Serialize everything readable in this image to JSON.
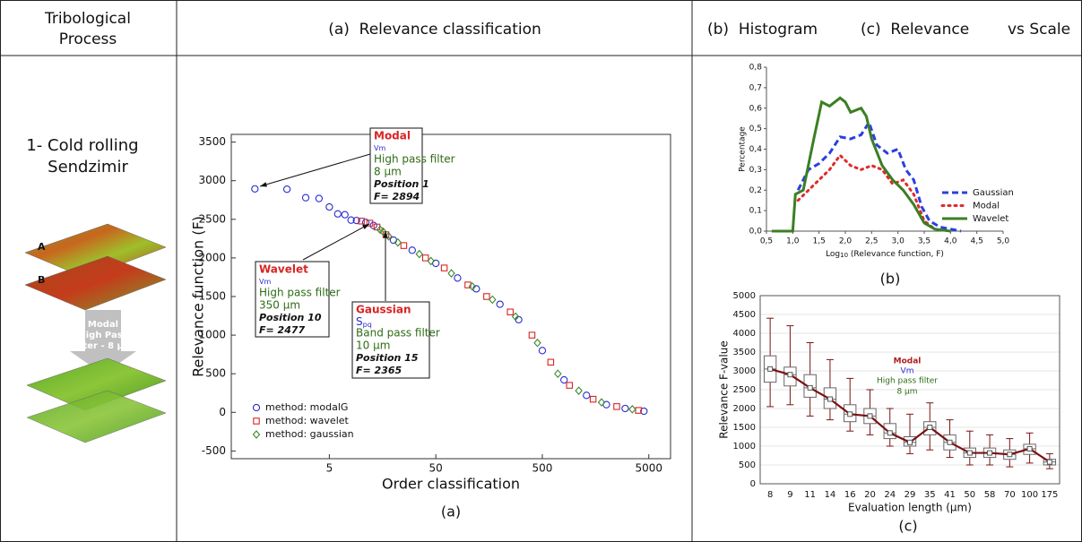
{
  "table": {
    "header": {
      "col1": [
        "Tribological",
        "Process"
      ],
      "col2": "(a)  Relevance classification",
      "col3": [
        "(b)  Histogram",
        "(c)  Relevance",
        "vs Scale"
      ]
    },
    "row_label": [
      "1- Cold rolling",
      "Sendzimir"
    ],
    "image": {
      "labels": [
        "A",
        "B"
      ],
      "arrow_text": [
        "Modal",
        "High Pass",
        "filter - 8 µm"
      ]
    }
  },
  "chart_data": [
    {
      "type": "scatter",
      "xscale": "log",
      "xlabel": "Order classification",
      "ylabel": "Relevance function (F)",
      "caption": "(a)",
      "xlim": [
        0.6,
        8000
      ],
      "ylim": [
        -600,
        3600
      ],
      "xticks": [
        5,
        50,
        500,
        5000
      ],
      "yticks": [
        -500,
        0,
        500,
        1000,
        1500,
        2000,
        2500,
        3000,
        3500
      ],
      "legend": "lower left",
      "series": [
        {
          "name": "method: modalG",
          "color": "#2b2bd0",
          "marker": "circle",
          "x": [
            1,
            2,
            3,
            4,
            5,
            6,
            7,
            8,
            9,
            11,
            13,
            20,
            30,
            50,
            80,
            120,
            200,
            300,
            500,
            800,
            1300,
            2000,
            3000,
            4500
          ],
          "values": [
            2894,
            2890,
            2780,
            2770,
            2660,
            2570,
            2560,
            2490,
            2485,
            2460,
            2420,
            2230,
            2100,
            1930,
            1740,
            1600,
            1400,
            1200,
            800,
            420,
            220,
            100,
            50,
            15
          ]
        },
        {
          "name": "method: wavelet",
          "color": "#d82424",
          "marker": "square",
          "x": [
            10,
            12,
            14,
            17,
            25,
            40,
            60,
            100,
            150,
            250,
            400,
            600,
            900,
            1500,
            2500,
            4000
          ],
          "values": [
            2477,
            2450,
            2400,
            2300,
            2160,
            2000,
            1870,
            1650,
            1500,
            1300,
            1000,
            650,
            350,
            170,
            75,
            25
          ]
        },
        {
          "name": "method: gaussian",
          "color": "#3a8a2a",
          "marker": "diamond",
          "x": [
            15,
            16,
            18,
            22,
            35,
            45,
            70,
            110,
            170,
            280,
            450,
            700,
            1100,
            1800,
            3500
          ],
          "values": [
            2365,
            2340,
            2280,
            2200,
            2050,
            1960,
            1800,
            1630,
            1460,
            1240,
            900,
            500,
            280,
            130,
            40
          ]
        }
      ],
      "annotations": [
        {
          "title": "Modal",
          "method": "Vm",
          "filter": "High pass filter",
          "size": "8 µm",
          "position": "Position 1",
          "f": "F= 2894"
        },
        {
          "title": "Wavelet",
          "method": "Vm",
          "filter": "High pass filter",
          "size": "350 µm",
          "position": "Position 10",
          "f": "F= 2477"
        },
        {
          "title": "Gaussian",
          "method": "S",
          "method_sub": "pq",
          "filter": "Band pass filter",
          "size": "10 µm",
          "position": "Position 15",
          "f": "F= 2365"
        }
      ]
    },
    {
      "type": "line",
      "xlabel": "Log",
      "xlabel_sub": "10",
      "xlabel_rest": " (Relevance function, F)",
      "ylabel": "Percentage",
      "caption": "(b)",
      "xlim": [
        0.5,
        5.0
      ],
      "ylim": [
        0,
        0.8
      ],
      "xticks": [
        {
          "value": 0.5,
          "label": "0,5"
        },
        {
          "value": 1.0,
          "label": "1,0"
        },
        {
          "value": 1.5,
          "label": "1,5"
        },
        {
          "value": 2.0,
          "label": "2,0"
        },
        {
          "value": 2.5,
          "label": "2,5"
        },
        {
          "value": 3.0,
          "label": "3,0"
        },
        {
          "value": 3.5,
          "label": "3,5"
        },
        {
          "value": 4.0,
          "label": "4,0"
        },
        {
          "value": 4.5,
          "label": "4,5"
        },
        {
          "value": 5.0,
          "label": "5,0"
        }
      ],
      "yticks": [
        {
          "value": 0,
          "label": "0,0"
        },
        {
          "value": 0.1,
          "label": "0,1"
        },
        {
          "value": 0.2,
          "label": "0,2"
        },
        {
          "value": 0.3,
          "label": "0,3"
        },
        {
          "value": 0.4,
          "label": "0,4"
        },
        {
          "value": 0.5,
          "label": "0,5"
        },
        {
          "value": 0.6,
          "label": "0,6"
        },
        {
          "value": 0.7,
          "label": "0,7"
        },
        {
          "value": 0.8,
          "label": "0,8"
        }
      ],
      "legend": "right",
      "series": [
        {
          "name": "Gaussian",
          "color": "#2b3fe0",
          "style": "dashed",
          "x": [
            1.1,
            1.3,
            1.5,
            1.7,
            1.9,
            2.1,
            2.3,
            2.45,
            2.6,
            2.8,
            3.0,
            3.15,
            3.3,
            3.45,
            3.6,
            3.8,
            4.0,
            4.2
          ],
          "values": [
            0.2,
            0.3,
            0.33,
            0.38,
            0.46,
            0.45,
            0.47,
            0.53,
            0.42,
            0.38,
            0.4,
            0.3,
            0.25,
            0.12,
            0.05,
            0.02,
            0.01,
            0
          ]
        },
        {
          "name": "Modal",
          "color": "#e02a2a",
          "style": "dotted",
          "x": [
            1.1,
            1.3,
            1.5,
            1.7,
            1.9,
            2.1,
            2.3,
            2.5,
            2.7,
            2.9,
            3.1,
            3.3,
            3.5,
            3.7
          ],
          "values": [
            0.15,
            0.2,
            0.25,
            0.3,
            0.37,
            0.32,
            0.3,
            0.32,
            0.3,
            0.23,
            0.25,
            0.18,
            0.05,
            0.01
          ]
        },
        {
          "name": "Wavelet",
          "color": "#3b7f24",
          "style": "solid",
          "x": [
            0.6,
            1.0,
            1.05,
            1.2,
            1.4,
            1.55,
            1.7,
            1.9,
            2.0,
            2.1,
            2.3,
            2.4,
            2.5,
            2.7,
            2.9,
            3.1,
            3.3,
            3.5,
            3.7,
            4.0
          ],
          "values": [
            0,
            0,
            0.18,
            0.2,
            0.45,
            0.63,
            0.61,
            0.65,
            0.63,
            0.58,
            0.6,
            0.56,
            0.45,
            0.32,
            0.25,
            0.2,
            0.13,
            0.04,
            0.01,
            0
          ]
        }
      ]
    },
    {
      "type": "box",
      "xlabel": "Evaluation length (µm)",
      "ylabel": "Relevance F-value",
      "caption": "(c)",
      "ylim": [
        0,
        5000
      ],
      "yticks": [
        0,
        500,
        1000,
        1500,
        2000,
        2500,
        3000,
        3500,
        4000,
        4500,
        5000
      ],
      "grid": true,
      "color": "#7b1212",
      "categories": [
        "8",
        "9",
        "11",
        "14",
        "16",
        "20",
        "24",
        "29",
        "35",
        "41",
        "50",
        "58",
        "70",
        "100",
        "175"
      ],
      "whisker_low": [
        2050,
        2100,
        1800,
        1700,
        1400,
        1300,
        1000,
        800,
        900,
        700,
        500,
        500,
        450,
        550,
        400
      ],
      "q1": [
        2700,
        2600,
        2300,
        2000,
        1650,
        1600,
        1200,
        1000,
        1300,
        900,
        700,
        700,
        650,
        780,
        500
      ],
      "median": [
        3050,
        2900,
        2550,
        2250,
        1850,
        1800,
        1350,
        1100,
        1500,
        1100,
        820,
        820,
        780,
        930,
        580
      ],
      "q3": [
        3400,
        3100,
        2900,
        2550,
        2100,
        2000,
        1600,
        1250,
        1650,
        1300,
        950,
        950,
        900,
        1050,
        650
      ],
      "whisker_high": [
        4400,
        4200,
        3750,
        3300,
        2800,
        2500,
        2000,
        1850,
        2150,
        1700,
        1400,
        1300,
        1200,
        1350,
        800
      ],
      "annotation": {
        "title": "Modal",
        "method": "Vm",
        "filter": "High pass filter",
        "size": "8 µm"
      }
    }
  ]
}
